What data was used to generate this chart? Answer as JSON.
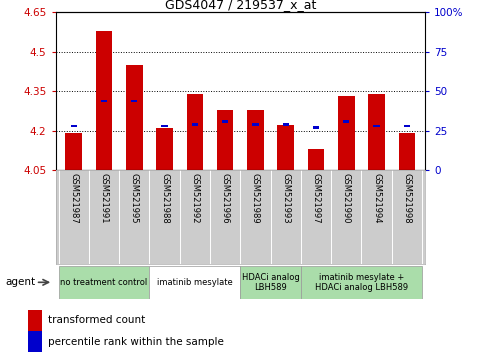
{
  "title": "GDS4047 / 219537_x_at",
  "samples": [
    "GSM521987",
    "GSM521991",
    "GSM521995",
    "GSM521988",
    "GSM521992",
    "GSM521996",
    "GSM521989",
    "GSM521993",
    "GSM521997",
    "GSM521990",
    "GSM521994",
    "GSM521998"
  ],
  "red_values": [
    4.19,
    4.58,
    4.45,
    4.21,
    4.34,
    4.28,
    4.28,
    4.22,
    4.13,
    4.33,
    4.34,
    4.19
  ],
  "blue_values": [
    27,
    43,
    43,
    27,
    28,
    30,
    28,
    28,
    26,
    30,
    27,
    27
  ],
  "y_min": 4.05,
  "y_max": 4.65,
  "y_ticks": [
    4.05,
    4.2,
    4.35,
    4.5,
    4.65
  ],
  "y2_ticks": [
    0,
    25,
    50,
    75,
    100
  ],
  "y2_labels": [
    "0",
    "25",
    "50",
    "75",
    "100%"
  ],
  "groups": [
    {
      "label": "no treatment control",
      "start": 0,
      "end": 2,
      "color": "#aaddaa"
    },
    {
      "label": "imatinib mesylate",
      "start": 3,
      "end": 5,
      "color": "#ffffff"
    },
    {
      "label": "HDACi analog\nLBH589",
      "start": 6,
      "end": 7,
      "color": "#aaddaa"
    },
    {
      "label": "imatinib mesylate +\nHDACi analog LBH589",
      "start": 8,
      "end": 11,
      "color": "#aaddaa"
    }
  ],
  "bar_color_red": "#cc0000",
  "bar_color_blue": "#0000cc",
  "bar_width": 0.55,
  "ylabel_color": "#cc0000",
  "y2label_color": "#0000cc",
  "agent_label": "agent",
  "legend_red": "transformed count",
  "legend_blue": "percentile rank within the sample",
  "grid_lines": [
    4.2,
    4.35,
    4.5
  ]
}
